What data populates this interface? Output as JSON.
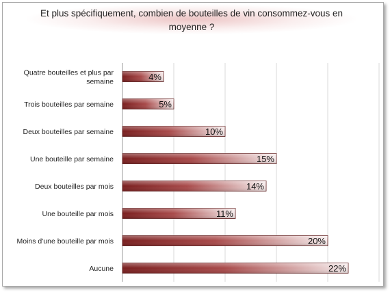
{
  "title": "Et plus spécifiquement, combien de bouteilles de vin consommez-vous en moyenne ?",
  "colors": {
    "bar_dark": "#7a1f1f",
    "bar_mid": "#b25a5a",
    "bar_light": "#f6ecec",
    "grid": "#d8d8d8"
  },
  "chart_data": {
    "type": "bar",
    "orientation": "horizontal",
    "title": "Et plus spécifiquement, combien de bouteilles de vin consommez-vous en moyenne ?",
    "categories": [
      "Quatre bouteilles et plus par semaine",
      "Trois bouteilles par semaine",
      "Deux bouteilles par semaine",
      "Une bouteille par semaine",
      "Deux bouteilles par mois",
      "Une bouteille par mois",
      "Moins d'une bouteille par mois",
      "Aucune"
    ],
    "category_lines": [
      [
        "Quatre bouteilles et plus par",
        "semaine"
      ],
      [
        "Trois bouteilles par semaine"
      ],
      [
        "Deux bouteilles par semaine"
      ],
      [
        "Une bouteille par semaine"
      ],
      [
        "Deux bouteilles par mois"
      ],
      [
        "Une bouteille par mois"
      ],
      [
        "Moins d'une bouteille par mois"
      ],
      [
        "Aucune"
      ]
    ],
    "values": [
      4,
      5,
      10,
      15,
      14,
      11,
      20,
      22
    ],
    "value_labels": [
      "4%",
      "5%",
      "10%",
      "15%",
      "14%",
      "11%",
      "20%",
      "22%"
    ],
    "xlim": [
      0,
      25
    ],
    "grid_step": 5,
    "grid": true,
    "legend": false
  }
}
